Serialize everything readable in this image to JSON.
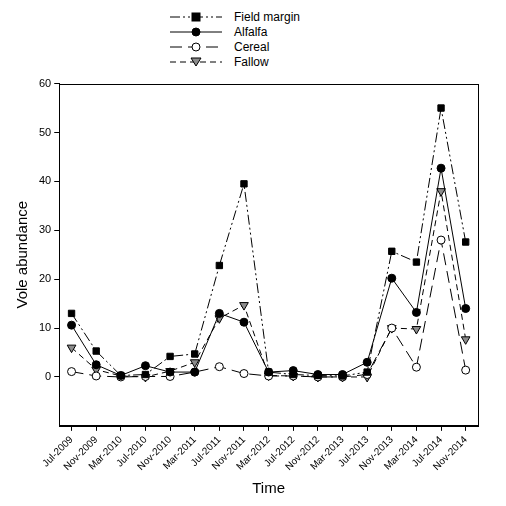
{
  "chart_data": {
    "type": "line",
    "x_label": "Time",
    "y_label": "Vole abundance",
    "categories": [
      "Jul-2009",
      "Nov-2009",
      "Mar-2010",
      "Jul-2010",
      "Nov-2010",
      "Mar-2011",
      "Jul-2011",
      "Nov-2011",
      "Mar-2012",
      "Jul-2012",
      "Nov-2012",
      "Mar-2013",
      "Jul-2013",
      "Nov-2013",
      "Mar-2014",
      "Jul-2014",
      "Nov-2014"
    ],
    "series": [
      {
        "name": "Field margin",
        "color": "#000000",
        "marker": "square",
        "line_style": "dash_dot_dot",
        "values": [
          13,
          5.3,
          0.3,
          0.5,
          4.2,
          4.7,
          22.8,
          39.5,
          1,
          0.5,
          0.3,
          0.2,
          1,
          25.7,
          23.5,
          55,
          27.6
        ]
      },
      {
        "name": "Alfalfa",
        "color": "#000000",
        "marker": "circle",
        "line_style": "solid",
        "values": [
          10.6,
          2.5,
          0.3,
          2.3,
          1,
          1,
          13,
          11.2,
          1,
          1.3,
          0.5,
          0.5,
          3,
          20.2,
          13.2,
          42.7,
          14
        ]
      },
      {
        "name": "Cereal",
        "color": "#000000",
        "marker": "open_circle",
        "line_style": "long_dash",
        "values": [
          1.1,
          0.2,
          0,
          0.1,
          0.1,
          1,
          2.1,
          0.7,
          0.2,
          0.2,
          0,
          0,
          0.5,
          10,
          2,
          28,
          1.4
        ]
      },
      {
        "name": "Fallow",
        "color": "#8c8c8c",
        "marker": "triangle_down",
        "line_style": "dash",
        "values": [
          6,
          1.5,
          0.2,
          0,
          1.2,
          3,
          12,
          14.7,
          0.3,
          0.2,
          0,
          0,
          0,
          10,
          9.8,
          38,
          7.7
        ]
      }
    ],
    "ylim": [
      -10,
      60
    ],
    "yticks": [
      0,
      10,
      20,
      30,
      40,
      50,
      60
    ],
    "grid": false,
    "legend": "top"
  }
}
